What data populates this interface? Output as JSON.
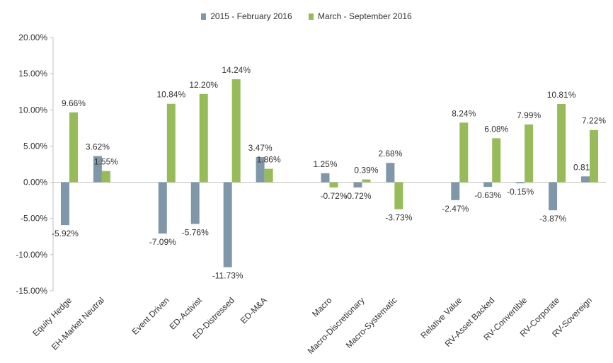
{
  "chart_data": {
    "type": "bar",
    "categories": [
      "Equity Hedge",
      "EH-Market Neutral",
      "",
      "Event Driven",
      "ED-Activist",
      "ED-Distressed",
      "ED-M&A",
      "",
      "Macro",
      "Macro-Discretionary",
      "Macro-Systematic",
      "",
      "Relative Value",
      "RV-Asset Backed",
      "RV-Convertible",
      "RV-Corporate",
      "RV-Sovereign"
    ],
    "series": [
      {
        "name": "2015 - February 2016",
        "color": "#7f97a8",
        "values": [
          -5.92,
          3.62,
          null,
          -7.09,
          -5.76,
          -11.73,
          3.47,
          null,
          1.25,
          -0.72,
          2.68,
          null,
          -2.47,
          -0.63,
          -0.15,
          -3.87,
          0.81
        ]
      },
      {
        "name": "March - September 2016",
        "color": "#98bb5a",
        "values": [
          9.66,
          1.55,
          null,
          10.84,
          12.2,
          14.24,
          1.86,
          null,
          -0.72,
          0.39,
          -3.73,
          null,
          8.24,
          6.08,
          7.99,
          10.81,
          7.22
        ]
      }
    ],
    "ylim": [
      -15,
      20
    ],
    "yticks": [
      -15,
      -10,
      -5,
      0,
      5,
      10,
      15,
      20
    ],
    "ytick_labels": [
      "-15.00%",
      "-10.00%",
      "-5.00%",
      "0.00%",
      "5.00%",
      "10.00%",
      "15.00%",
      "20.00%"
    ],
    "value_format": "percent-2dp",
    "grid": false,
    "legend_position": "top"
  }
}
